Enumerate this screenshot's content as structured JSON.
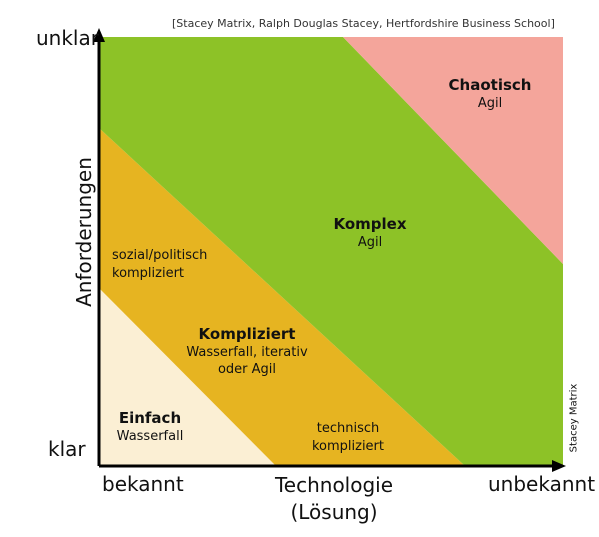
{
  "citation": "[Stacey Matrix, Ralph Douglas Stacey, Hertfordshire Business School]",
  "y_axis": {
    "title": "Anforderungen",
    "top_label": "unklar",
    "bottom_label": "klar"
  },
  "x_axis": {
    "title_line1": "Technologie",
    "title_line2": "(Lösung)",
    "left_label": "bekannt",
    "right_label": "unbekannt"
  },
  "side_note": "Stacey Matrix",
  "colors": {
    "chaotisch": "#f4a59b",
    "komplex": "#8dc227",
    "kompliziert": "#e6b421",
    "einfach": "#fbefd4",
    "axis": "#000000"
  },
  "regions": {
    "chaotisch": {
      "name": "Chaotisch",
      "method": "Agil"
    },
    "komplex": {
      "name": "Komplex",
      "method": "Agil"
    },
    "kompliziert": {
      "name": "Kompliziert",
      "method_line1": "Wasserfall, iterativ",
      "method_line2": "oder Agil"
    },
    "einfach": {
      "name": "Einfach",
      "method": "Wasserfall"
    }
  },
  "notes": {
    "sozial_line1": "sozial/politisch",
    "sozial_line2": "kompliziert",
    "technisch_line1": "technisch",
    "technisch_line2": "kompliziert"
  }
}
